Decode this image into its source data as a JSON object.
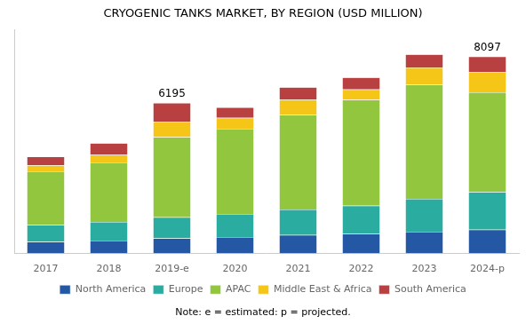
{
  "chart_data": {
    "type": "bar",
    "title": "CRYOGENIC TANKS MARKET, BY REGION (USD MILLION)",
    "note": "Note: e = estimated: p = projected.",
    "categories": [
      "2017",
      "2018",
      "2019-e",
      "2020",
      "2021",
      "2022",
      "2023",
      "2024-p"
    ],
    "series": [
      {
        "name": "North America",
        "color": "#2457A4",
        "values": [
          480,
          530,
          620,
          680,
          760,
          820,
          900,
          980
        ]
      },
      {
        "name": "Europe",
        "color": "#2AADA0",
        "values": [
          700,
          770,
          870,
          950,
          1050,
          1150,
          1350,
          1550
        ]
      },
      {
        "name": "APAC",
        "color": "#92C63E",
        "values": [
          2200,
          2450,
          3300,
          3500,
          3900,
          4350,
          4700,
          4100
        ]
      },
      {
        "name": "Middle East & Africa",
        "color": "#F5C518",
        "values": [
          250,
          310,
          620,
          450,
          620,
          430,
          700,
          820
        ]
      },
      {
        "name": "South America",
        "color": "#B94040",
        "values": [
          350,
          480,
          785,
          430,
          510,
          490,
          540,
          647
        ]
      }
    ],
    "annotations": [
      {
        "x": "2019-e",
        "y": 6195,
        "text": "6195"
      },
      {
        "x": "2024-p",
        "y": 8097,
        "text": "8097"
      }
    ],
    "ylim": [
      0,
      9200
    ],
    "stacked": true,
    "grid": false,
    "legend": "bottom",
    "tick_labels": "x"
  }
}
